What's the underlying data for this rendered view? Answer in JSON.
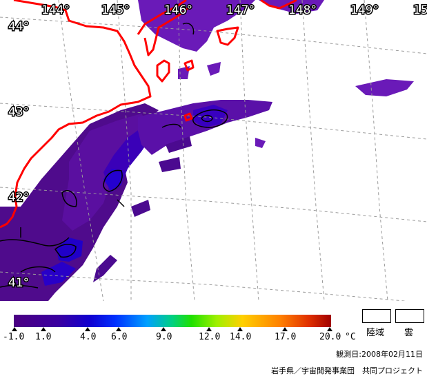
{
  "longitude_labels": [
    "144°",
    "145°",
    "146°",
    "147°",
    "148°",
    "149°",
    "15"
  ],
  "latitude_labels": [
    "44°",
    "43°",
    "42°",
    "41°"
  ],
  "legend": {
    "ticks": [
      "-1.0",
      "1.0",
      "4.0",
      "6.0",
      "9.0",
      "12.0",
      "14.0",
      "17.0",
      "20.0"
    ],
    "unit": "°C",
    "key_land": "陸域",
    "key_cloud": "雲"
  },
  "observation_date": "観測日:2008年02月11日",
  "credit": "岩手県／宇宙開発事業団　共同プロジェクト",
  "colors": {
    "coastline": "#ff0000",
    "sst_low": "#4b0082",
    "sst_mid": "#3a00b0",
    "sst_high": "#1800d8",
    "contour": "#000000",
    "grid": "#888888"
  }
}
